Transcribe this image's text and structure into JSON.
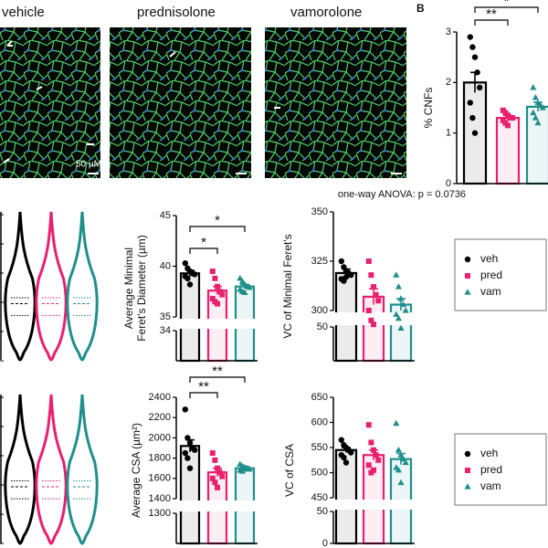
{
  "figure": {
    "panel_label": "B",
    "images": [
      {
        "label": "vehicle"
      },
      {
        "label": "prednisolone"
      },
      {
        "label": "vamorolone"
      }
    ],
    "scale_bar": "50 µM"
  },
  "chart_data": [
    {
      "type": "bar",
      "ylabel": "% CNFs",
      "ylim": [
        0,
        3
      ],
      "yticks": [
        0,
        1,
        2,
        3
      ],
      "series": [
        {
          "name": "veh",
          "color": "#000000",
          "marker": "circle",
          "value": 2.0,
          "error": 0.2,
          "points": [
            2.9,
            2.7,
            2.5,
            2.2,
            1.9,
            1.6,
            1.3,
            1.0
          ]
        },
        {
          "name": "pred",
          "color": "#e8206e",
          "marker": "square",
          "value": 1.3,
          "error": 0.05,
          "points": [
            1.45,
            1.4,
            1.35,
            1.3,
            1.3,
            1.25,
            1.2,
            1.15
          ]
        },
        {
          "name": "vam",
          "color": "#1f8f8c",
          "marker": "triangle",
          "value": 1.52,
          "error": 0.09,
          "points": [
            1.9,
            1.7,
            1.6,
            1.55,
            1.5,
            1.4,
            1.3,
            1.2
          ]
        }
      ],
      "significance": [
        {
          "label": "**",
          "groups": [
            "veh",
            "pred"
          ]
        },
        {
          "label": "*",
          "groups": [
            "veh",
            "vam"
          ]
        }
      ]
    },
    {
      "type": "bar",
      "ylabel": [
        "Average Minimal",
        "Feret's Diameter (µm)"
      ],
      "ylim": [
        0,
        45
      ],
      "axis_break": [
        34,
        35
      ],
      "yticks": [
        34,
        35,
        40,
        45
      ],
      "series": [
        {
          "name": "veh",
          "color": "#000000",
          "marker": "circle",
          "value": 39.3,
          "error": 0.3,
          "points": [
            40.3,
            39.8,
            39.5,
            39.3,
            39.2,
            39.0,
            38.8,
            38.2
          ]
        },
        {
          "name": "pred",
          "color": "#e8206e",
          "marker": "square",
          "value": 37.6,
          "error": 0.4,
          "points": [
            39.5,
            38.8,
            38.0,
            37.5,
            37.2,
            36.8,
            36.5,
            36.3
          ]
        },
        {
          "name": "vam",
          "color": "#1f8f8c",
          "marker": "triangle",
          "value": 38.0,
          "error": 0.2,
          "points": [
            38.8,
            38.5,
            38.2,
            38.0,
            37.9,
            37.7,
            37.5,
            37.4
          ]
        }
      ],
      "significance": [
        {
          "label": "*",
          "groups": [
            "veh",
            "pred"
          ]
        },
        {
          "label": "*",
          "groups": [
            "veh",
            "vam"
          ]
        }
      ]
    },
    {
      "type": "bar",
      "ylabel": "VC of Minimal Feret's",
      "annotation": "one-way ANOVA: p = 0.0736",
      "ylim": [
        0,
        350
      ],
      "axis_break": [
        50,
        300
      ],
      "yticks": [
        50,
        300,
        325,
        350
      ],
      "legend": true,
      "series": [
        {
          "name": "veh",
          "color": "#000000",
          "marker": "circle",
          "value": 319,
          "error": 2,
          "points": [
            325,
            322,
            320,
            319,
            318,
            316,
            315,
            317
          ]
        },
        {
          "name": "pred",
          "color": "#e8206e",
          "marker": "square",
          "value": 307,
          "error": 4,
          "points": [
            325,
            318,
            312,
            308,
            305,
            300,
            295,
            293
          ]
        },
        {
          "name": "vam",
          "color": "#1f8f8c",
          "marker": "triangle",
          "value": 303,
          "error": 3,
          "points": [
            318,
            312,
            306,
            303,
            300,
            298,
            296,
            291
          ]
        }
      ]
    },
    {
      "type": "bar",
      "ylabel": "Average CSA (µm²)",
      "ylim": [
        0,
        2400
      ],
      "axis_break": [
        1300,
        1400
      ],
      "yticks": [
        1300,
        1400,
        1600,
        1800,
        2000,
        2200,
        2400
      ],
      "series": [
        {
          "name": "veh",
          "color": "#000000",
          "marker": "circle",
          "value": 1920,
          "error": 60,
          "points": [
            2280,
            2000,
            1950,
            1900,
            1880,
            1850,
            1800,
            1700
          ]
        },
        {
          "name": "pred",
          "color": "#e8206e",
          "marker": "square",
          "value": 1660,
          "error": 40,
          "points": [
            1850,
            1780,
            1700,
            1660,
            1620,
            1600,
            1560,
            1510
          ]
        },
        {
          "name": "vam",
          "color": "#1f8f8c",
          "marker": "triangle",
          "value": 1700,
          "error": 15,
          "points": [
            1740,
            1720,
            1710,
            1700,
            1690,
            1680,
            1670,
            1690
          ]
        }
      ],
      "significance": [
        {
          "label": "**",
          "groups": [
            "veh",
            "pred"
          ]
        },
        {
          "label": "**",
          "groups": [
            "veh",
            "vam"
          ]
        }
      ]
    },
    {
      "type": "bar",
      "ylabel": "VC of CSA",
      "ylim": [
        0,
        650
      ],
      "axis_break": [
        50,
        450
      ],
      "yticks": [
        0,
        50,
        450,
        500,
        550,
        600,
        650
      ],
      "legend": true,
      "series": [
        {
          "name": "veh",
          "color": "#000000",
          "marker": "circle",
          "value": 545,
          "error": 5,
          "points": [
            565,
            555,
            550,
            545,
            540,
            535,
            530,
            520
          ]
        },
        {
          "name": "pred",
          "color": "#e8206e",
          "marker": "square",
          "value": 535,
          "error": 10,
          "points": [
            595,
            560,
            545,
            535,
            525,
            515,
            500,
            505
          ]
        },
        {
          "name": "vam",
          "color": "#1f8f8c",
          "marker": "triangle",
          "value": 527,
          "error": 11,
          "points": [
            598,
            545,
            535,
            527,
            520,
            510,
            505,
            480
          ]
        }
      ]
    }
  ]
}
